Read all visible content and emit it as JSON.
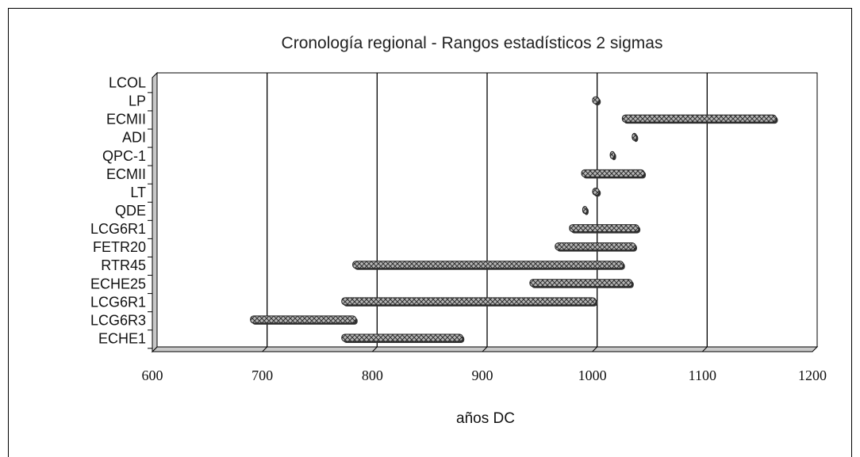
{
  "chart_data": {
    "type": "bar",
    "subtype": "horizontal-range",
    "title": "Cronología regional - Rangos estadísticos 2 sigmas",
    "xlabel": "años DC",
    "ylabel": "",
    "xlim": [
      600,
      1200
    ],
    "xticks": [
      "600",
      "700",
      "800",
      "900",
      "1000",
      "1100",
      "1200"
    ],
    "gridlines": "vertical",
    "categories": [
      "LCOL",
      "LP",
      "ECMII",
      "ADI",
      "QPC-1",
      "ECMII",
      "LT",
      "QDE",
      "LCG6R1",
      "FETR20",
      "RTR45",
      "ECHE25",
      "LCG6R1",
      "LCG6R3",
      "ECHE1"
    ],
    "ranges": [
      null,
      [
        998,
        1004
      ],
      [
        1025,
        1165
      ],
      [
        1034,
        1038
      ],
      [
        1014,
        1018
      ],
      [
        988,
        1045
      ],
      [
        998,
        1004
      ],
      [
        989,
        993
      ],
      [
        977,
        1040
      ],
      [
        964,
        1037
      ],
      [
        780,
        1026
      ],
      [
        941,
        1034
      ],
      [
        770,
        1001
      ],
      [
        687,
        783
      ],
      [
        770,
        880
      ]
    ],
    "bar_color": "#777777",
    "bar_hatch": "crosshatch"
  }
}
